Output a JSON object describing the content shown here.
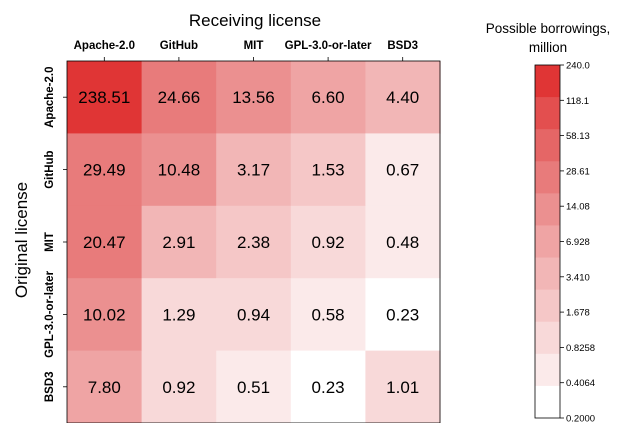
{
  "chart_data": {
    "type": "heatmap",
    "xlabel": "Receiving license",
    "ylabel": "Original license",
    "x_categories": [
      "Apache-2.0",
      "GitHub",
      "MIT",
      "GPL-3.0-or-later",
      "BSD3"
    ],
    "y_categories": [
      "Apache-2.0",
      "GitHub",
      "MIT",
      "GPL-3.0-or-later",
      "BSD3"
    ],
    "values": [
      [
        238.51,
        24.66,
        13.56,
        6.6,
        4.4
      ],
      [
        29.49,
        10.48,
        3.17,
        1.53,
        0.67
      ],
      [
        20.47,
        2.91,
        2.38,
        0.92,
        0.48
      ],
      [
        10.02,
        1.29,
        0.94,
        0.58,
        0.23
      ],
      [
        7.8,
        0.92,
        0.51,
        0.23,
        1.01
      ]
    ],
    "value_labels": [
      [
        "238.51",
        "24.66",
        "13.56",
        "6.60",
        "4.40"
      ],
      [
        "29.49",
        "10.48",
        "3.17",
        "1.53",
        "0.67"
      ],
      [
        "20.47",
        "2.91",
        "2.38",
        "0.92",
        "0.48"
      ],
      [
        "10.02",
        "1.29",
        "0.94",
        "0.58",
        "0.23"
      ],
      [
        "7.80",
        "0.92",
        "0.51",
        "0.23",
        "1.01"
      ]
    ],
    "colorbar": {
      "title_line1": "Possible borrowings,",
      "title_line2": "million",
      "scale": "log",
      "ticks": [
        "240.0",
        "118.1",
        "58.13",
        "28.61",
        "14.08",
        "6.928",
        "3.410",
        "1.678",
        "0.8258",
        "0.4064",
        "0.2000"
      ],
      "colors": [
        "#ffffff",
        "#fbeaea",
        "#f8d9d9",
        "#f5c7c7",
        "#f2b6b6",
        "#efa4a4",
        "#eb9090",
        "#e87b7b",
        "#e56666",
        "#e34f4f",
        "#e03535"
      ]
    }
  }
}
